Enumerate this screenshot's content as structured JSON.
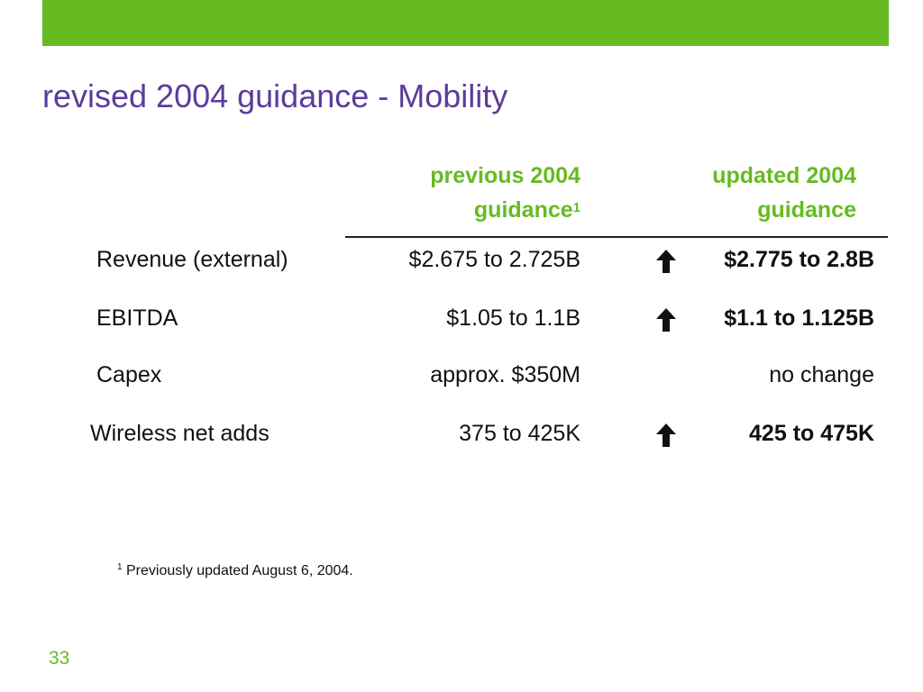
{
  "slide": {
    "title": "revised 2004 guidance - Mobility",
    "page_number": "33",
    "accent_color": "#66bb22",
    "title_color": "#5b3c9c"
  },
  "table": {
    "headers": {
      "previous_line1": "previous 2004",
      "previous_line2": "guidance",
      "previous_footnote_mark": "1",
      "updated_line1": "updated 2004",
      "updated_line2": "guidance"
    },
    "rows": [
      {
        "label": "Revenue (external)",
        "previous": "$2.675 to 2.725B",
        "updated": "$2.775 to 2.8B",
        "arrow": "up-arrow-icon"
      },
      {
        "label": "EBITDA",
        "previous": "$1.05 to 1.1B",
        "updated": "$1.1 to 1.125B",
        "arrow": "up-arrow-icon"
      },
      {
        "label": "Capex",
        "previous": "approx. $350M",
        "updated": "no change"
      },
      {
        "label": "Wireless net adds",
        "previous": "375 to 425K",
        "updated": "425 to 475K",
        "arrow": "up-arrow-icon"
      }
    ]
  },
  "footnote": {
    "mark": "1",
    "text": " Previously updated August 6, 2004."
  }
}
